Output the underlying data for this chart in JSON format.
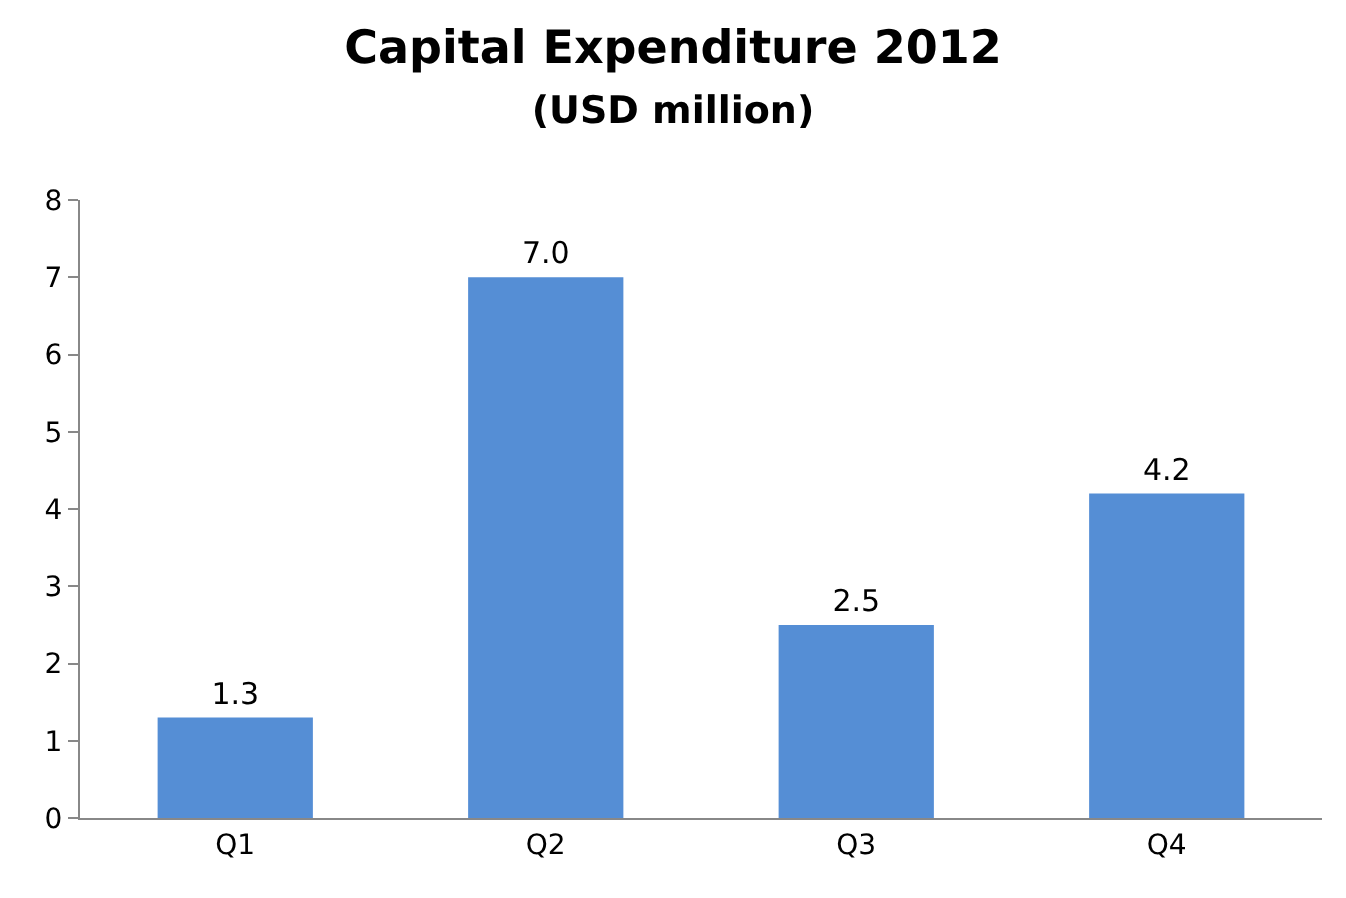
{
  "chart_data": {
    "type": "bar",
    "title": "Capital Expenditure 2012",
    "subtitle": "(USD million)",
    "categories": [
      "Q1",
      "Q2",
      "Q3",
      "Q4"
    ],
    "values": [
      1.3,
      7.0,
      2.5,
      4.2
    ],
    "value_labels": [
      "1.3",
      "7.0",
      "2.5",
      "4.2"
    ],
    "color": "#558ed5",
    "ylim": [
      0,
      8
    ],
    "yticks": [
      0,
      1,
      2,
      3,
      4,
      5,
      6,
      7,
      8
    ],
    "grid": false
  }
}
